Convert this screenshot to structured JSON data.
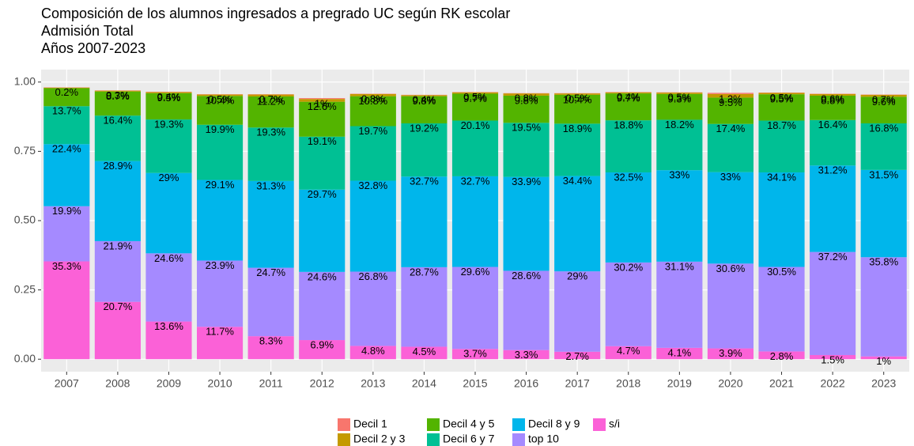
{
  "chart_data": {
    "type": "stacked_bar",
    "title": "Composición de los alumnos ingresados a pregrado UC según RK escolar",
    "subtitle": "Admisión Total",
    "subtitle2": "Años 2007-2023",
    "categories": [
      "2007",
      "2008",
      "2009",
      "2010",
      "2011",
      "2012",
      "2013",
      "2014",
      "2015",
      "2016",
      "2017",
      "2018",
      "2019",
      "2020",
      "2021",
      "2022",
      "2023"
    ],
    "series": [
      {
        "name": "Decil 1",
        "color": "#F8766D",
        "values": [
          0.001,
          0.001,
          0.001,
          0.001,
          0.001,
          0.003,
          0.001,
          0.001,
          0.001,
          0.001,
          0.001,
          0.001,
          0.001,
          0.004,
          0.001,
          0.001,
          0.001
        ]
      },
      {
        "name": "Decil 2 y 3",
        "color": "#C49A00",
        "values": [
          0.002,
          0.003,
          0.004,
          0.005,
          0.007,
          0.01,
          0.008,
          0.004,
          0.005,
          0.008,
          0.005,
          0.004,
          0.005,
          0.013,
          0.005,
          0.006,
          0.007
        ],
        "value_labels": [
          "0.2%",
          "0.3%",
          "0.4%",
          "0.5%",
          "0.7%",
          "1%",
          "0.8%",
          "0.4%",
          "0.5%",
          "0.8%",
          "0.5%",
          "0.4%",
          "0.5%",
          "1.3%",
          "0.5%",
          "0.6%",
          "0.7%"
        ]
      },
      {
        "name": "Decil 4 y 5",
        "color": "#53B400",
        "values": [
          0.065,
          0.087,
          0.095,
          0.104,
          0.112,
          0.126,
          0.108,
          0.098,
          0.097,
          0.098,
          0.104,
          0.097,
          0.093,
          0.095,
          0.095,
          0.088,
          0.096
        ],
        "value_labels": [
          null,
          "8.7%",
          "9.5%",
          "10.4%",
          "11.2%",
          "12.6%",
          "10.8%",
          "9.8%",
          "9.7%",
          "9.8%",
          "10.4%",
          "9.7%",
          "9.3%",
          "9.5%",
          "9.5%",
          "8.8%",
          "9.6%"
        ]
      },
      {
        "name": "Decil 6 y 7",
        "color": "#00C094",
        "values": [
          0.137,
          0.164,
          0.193,
          0.199,
          0.193,
          0.191,
          0.197,
          0.192,
          0.201,
          0.195,
          0.189,
          0.188,
          0.182,
          0.174,
          0.187,
          0.164,
          0.168
        ],
        "value_labels": [
          "13.7%",
          "16.4%",
          "19.3%",
          "19.9%",
          "19.3%",
          "19.1%",
          "19.7%",
          "19.2%",
          "20.1%",
          "19.5%",
          "18.9%",
          "18.8%",
          "18.2%",
          "17.4%",
          "18.7%",
          "16.4%",
          "16.8%"
        ]
      },
      {
        "name": "Decil 8 y 9",
        "color": "#00B6EB",
        "values": [
          0.224,
          0.289,
          0.29,
          0.291,
          0.313,
          0.297,
          0.328,
          0.327,
          0.327,
          0.339,
          0.344,
          0.325,
          0.33,
          0.33,
          0.341,
          0.312,
          0.315
        ],
        "value_labels": [
          "22.4%",
          "28.9%",
          "29%",
          "29.1%",
          "31.3%",
          "29.7%",
          "32.8%",
          "32.7%",
          "32.7%",
          "33.9%",
          "34.4%",
          "32.5%",
          "33%",
          "33%",
          "34.1%",
          "31.2%",
          "31.5%"
        ]
      },
      {
        "name": "top 10",
        "color": "#A58AFF",
        "values": [
          0.199,
          0.219,
          0.246,
          0.239,
          0.247,
          0.246,
          0.268,
          0.287,
          0.296,
          0.286,
          0.29,
          0.302,
          0.311,
          0.306,
          0.305,
          0.372,
          0.358
        ],
        "value_labels": [
          "19.9%",
          "21.9%",
          "24.6%",
          "23.9%",
          "24.7%",
          "24.6%",
          "26.8%",
          "28.7%",
          "29.6%",
          "28.6%",
          "29%",
          "30.2%",
          "31.1%",
          "30.6%",
          "30.5%",
          "37.2%",
          "35.8%"
        ]
      },
      {
        "name": "s/i",
        "color": "#FB61D7",
        "values": [
          0.353,
          0.207,
          0.136,
          0.117,
          0.083,
          0.069,
          0.048,
          0.045,
          0.037,
          0.033,
          0.027,
          0.047,
          0.041,
          0.039,
          0.028,
          0.015,
          0.01
        ],
        "value_labels": [
          "35.3%",
          "20.7%",
          "13.6%",
          "11.7%",
          "8.3%",
          "6.9%",
          "4.8%",
          "4.5%",
          "3.7%",
          "3.3%",
          "2.7%",
          "4.7%",
          "4.1%",
          "3.9%",
          "2.8%",
          "1.5%",
          "1%"
        ]
      }
    ],
    "ylim": [
      -0.045,
      1.045
    ],
    "yticks": [
      {
        "value": 0,
        "label": "0.00"
      },
      {
        "value": 0.25,
        "label": "0.25"
      },
      {
        "value": 0.5,
        "label": "0.50"
      },
      {
        "value": 0.75,
        "label": "0.75"
      },
      {
        "value": 1,
        "label": "1.00"
      }
    ],
    "grid": true,
    "legend": "bottom"
  }
}
